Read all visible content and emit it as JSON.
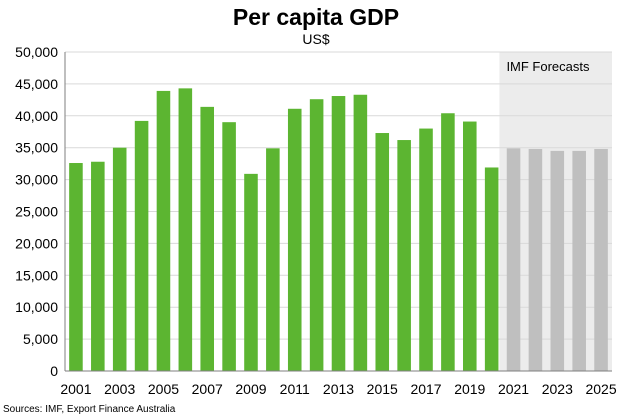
{
  "chart_data": {
    "type": "bar",
    "title": "Per capita GDP",
    "subtitle": "US$",
    "xlabel": "",
    "ylabel": "",
    "ylim": [
      0,
      50000
    ],
    "yticks": [
      "0",
      "5,000",
      "10,000",
      "15,000",
      "20,000",
      "25,000",
      "30,000",
      "35,000",
      "40,000",
      "45,000",
      "50,000"
    ],
    "categories": [
      "2001",
      "2002",
      "2003",
      "2004",
      "2005",
      "2006",
      "2007",
      "2008",
      "2009",
      "2010",
      "2011",
      "2012",
      "2013",
      "2014",
      "2015",
      "2016",
      "2017",
      "2018",
      "2019",
      "2020",
      "2021",
      "2022",
      "2023",
      "2024",
      "2025"
    ],
    "xtick_labels": [
      "2001",
      "2003",
      "2005",
      "2007",
      "2009",
      "2011",
      "2013",
      "2015",
      "2017",
      "2019",
      "2021",
      "2023",
      "2025"
    ],
    "series": [
      {
        "values": [
          32600,
          32800,
          35000,
          39200,
          43900,
          44300,
          41400,
          39000,
          30900,
          34900,
          41100,
          42600,
          43100,
          43300,
          37300,
          36200,
          38000,
          40400,
          39100,
          31900,
          34900,
          34800,
          34500,
          34500,
          34800
        ]
      }
    ],
    "forecast_start_index": 20,
    "forecast_label": "IMF Forecasts",
    "colors": {
      "actual": "#5cb531",
      "forecast": "#bfbfbf",
      "forecast_band": "#ececec",
      "gridline": "#d9d9d9"
    },
    "grid": true,
    "source_note": "Sources: IMF, Export Finance Australia"
  }
}
